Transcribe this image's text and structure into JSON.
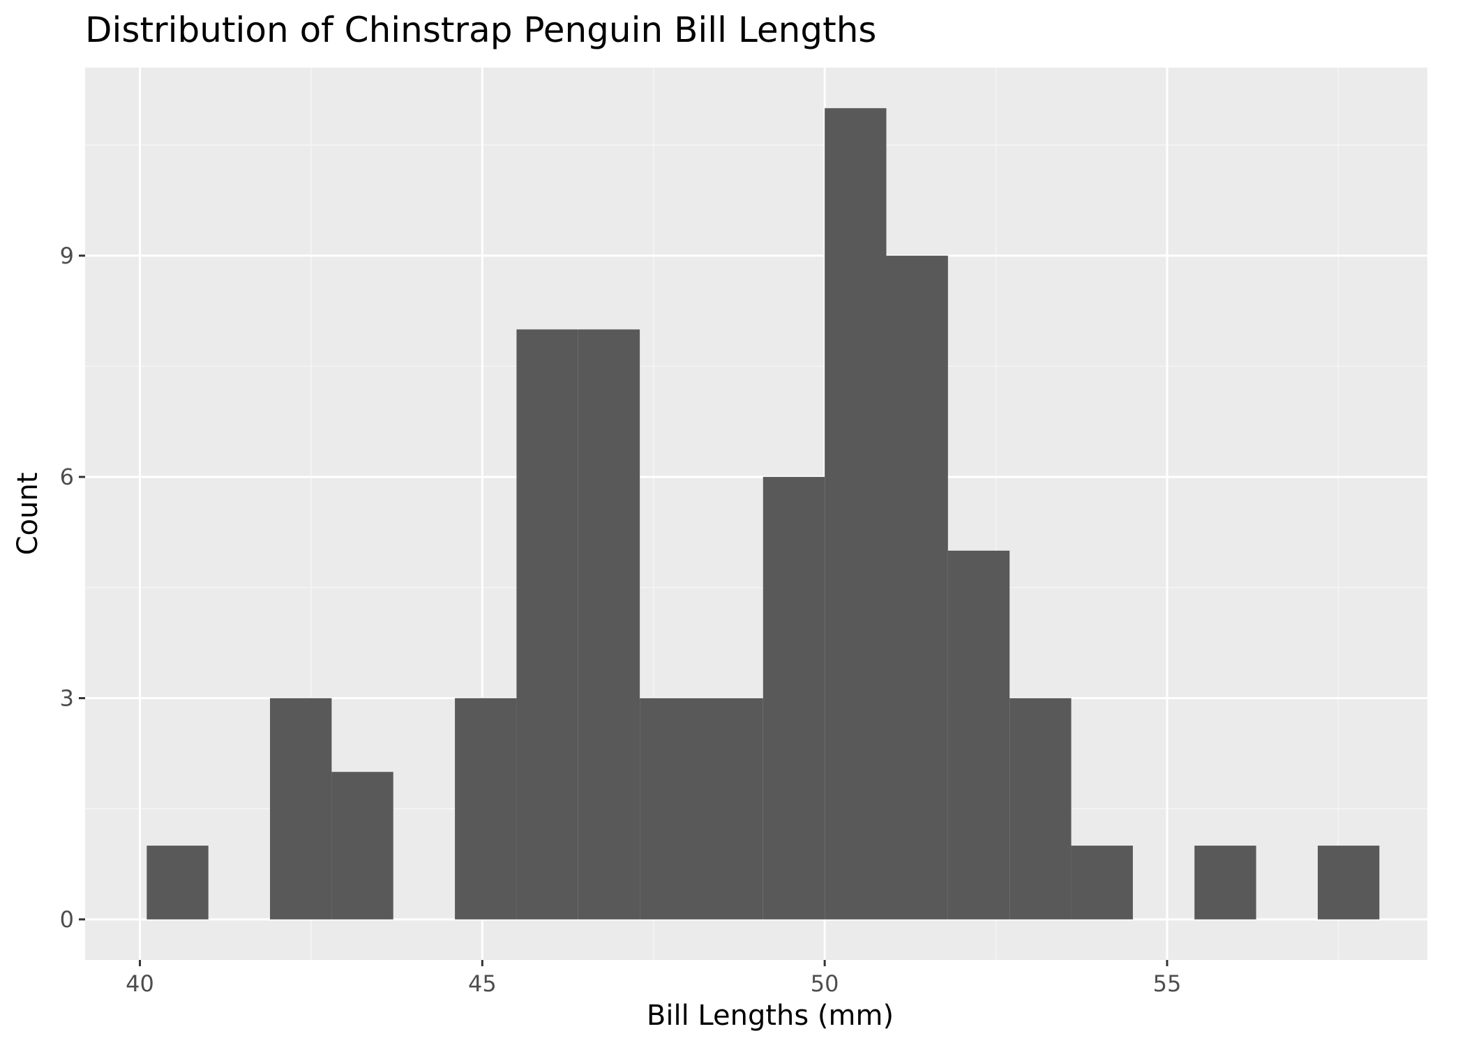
{
  "chart_data": {
    "type": "bar",
    "title": "Distribution of Chinstrap Penguin Bill Lengths",
    "xlabel": "Bill Lengths (mm)",
    "ylabel": "Count",
    "xlim": [
      39.2,
      58.8
    ],
    "ylim": [
      -0.55,
      11.55
    ],
    "x_ticks": [
      40,
      45,
      50,
      55
    ],
    "x_tick_labels": [
      "40",
      "45",
      "50",
      "55"
    ],
    "y_ticks": [
      0,
      3,
      6,
      9
    ],
    "y_tick_labels": [
      "0",
      "3",
      "6",
      "9"
    ],
    "x_minor_ticks": [
      42.5,
      47.5,
      52.5,
      57.5
    ],
    "y_minor_ticks": [
      1.5,
      4.5,
      7.5,
      10.5
    ],
    "bins": [
      {
        "x0": 40.1,
        "x1": 41.0,
        "count": 1
      },
      {
        "x0": 41.9,
        "x1": 42.8,
        "count": 3
      },
      {
        "x0": 42.8,
        "x1": 43.7,
        "count": 2
      },
      {
        "x0": 44.6,
        "x1": 45.5,
        "count": 3
      },
      {
        "x0": 45.5,
        "x1": 46.4,
        "count": 8
      },
      {
        "x0": 46.4,
        "x1": 47.3,
        "count": 8
      },
      {
        "x0": 47.3,
        "x1": 48.2,
        "count": 3
      },
      {
        "x0": 48.2,
        "x1": 49.1,
        "count": 3
      },
      {
        "x0": 49.1,
        "x1": 50.0,
        "count": 6
      },
      {
        "x0": 50.0,
        "x1": 50.9,
        "count": 11
      },
      {
        "x0": 50.9,
        "x1": 51.8,
        "count": 9
      },
      {
        "x0": 51.8,
        "x1": 52.7,
        "count": 5
      },
      {
        "x0": 52.7,
        "x1": 53.6,
        "count": 3
      },
      {
        "x0": 53.6,
        "x1": 54.5,
        "count": 1
      },
      {
        "x0": 55.4,
        "x1": 56.3,
        "count": 1
      },
      {
        "x0": 57.2,
        "x1": 58.1,
        "count": 1
      }
    ],
    "grid": true,
    "legend": "none",
    "colors": {
      "panel_background": "#ebebeb",
      "grid_major": "#ffffff",
      "grid_minor": "#f5f5f5",
      "bar_fill": "#595959",
      "tick_mark": "#333333",
      "tick_label": "#4d4d4d",
      "text": "#000000"
    }
  }
}
